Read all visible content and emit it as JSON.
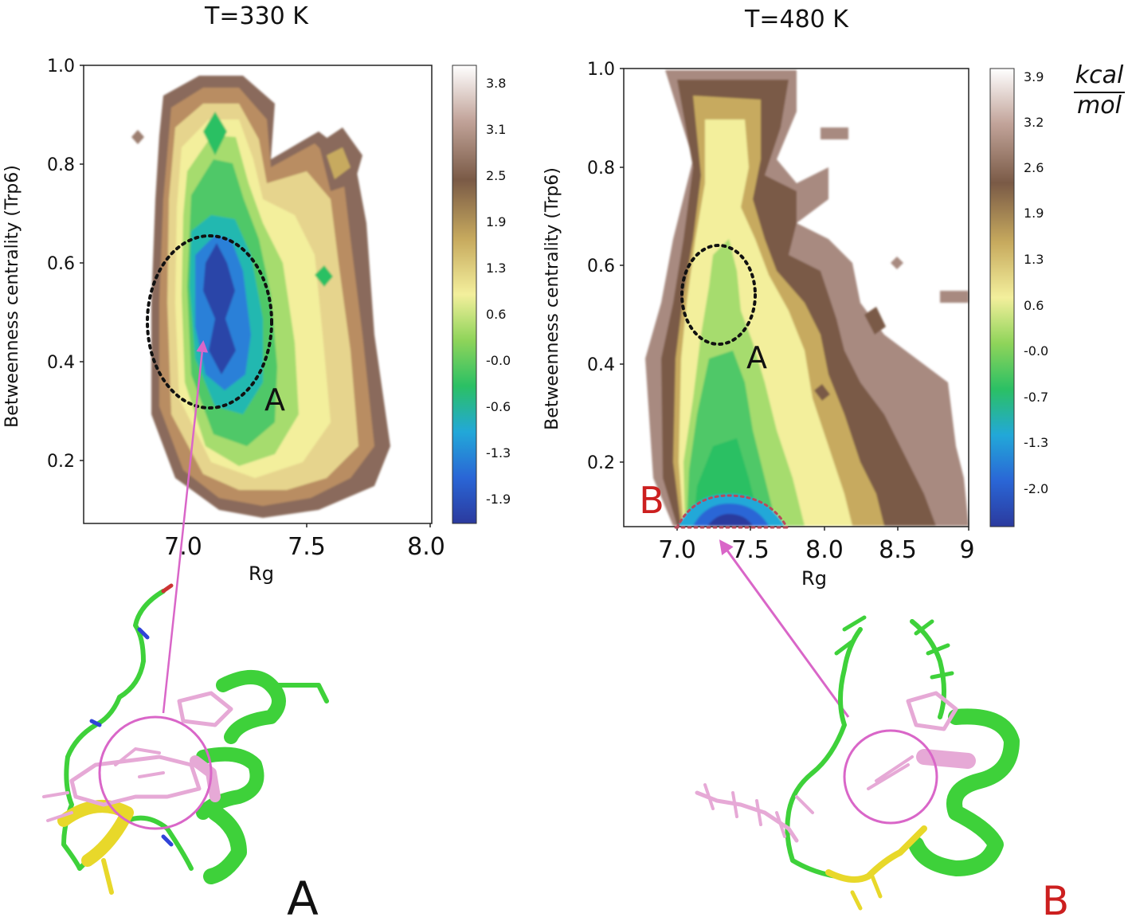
{
  "chart_data": [
    {
      "type": "heatmap",
      "title": "T=330 K",
      "xlabel": "Rg",
      "ylabel": "Betweenness centrality (Trp6)",
      "xlim": [
        6.6,
        8.0
      ],
      "ylim": [
        0.07,
        1.0
      ],
      "x_ticks": [
        7.0,
        7.5,
        8.0
      ],
      "x_tick_labels": [
        "7.0",
        "7.5",
        "8.0"
      ],
      "y_ticks": [
        0.2,
        0.4,
        0.6,
        0.8,
        1.0
      ],
      "y_tick_labels": [
        "0.2",
        "0.4",
        "0.6",
        "0.8",
        "1.0"
      ],
      "colorbar": {
        "ticks": [
          3.8,
          3.1,
          2.5,
          1.9,
          1.3,
          0.6,
          -0.0,
          -0.6,
          -1.3,
          -1.9
        ],
        "tick_labels": [
          "3.8",
          "3.1",
          "2.5",
          "1.9",
          "1.3",
          "0.6",
          "-0.0",
          "-0.6",
          "-1.3",
          "-1.9"
        ],
        "range": [
          -2.3,
          4.1
        ]
      },
      "minima": [
        {
          "x": 7.15,
          "y": 0.57,
          "value": -2.1
        },
        {
          "x": 7.15,
          "y": 0.42,
          "value": -2.0
        },
        {
          "x": 7.15,
          "y": 0.86,
          "value": -0.4
        },
        {
          "x": 7.6,
          "y": 0.58,
          "value": 0.0
        }
      ],
      "annotations": [
        {
          "label": "A",
          "x": 7.35,
          "y": 0.3,
          "circle": {
            "cx": 7.1,
            "cy": 0.48,
            "rx": 0.25,
            "ry": 0.17
          }
        }
      ],
      "structure_label": "A"
    },
    {
      "type": "heatmap",
      "title": "T=480 K",
      "xlabel": "Rg",
      "ylabel": "Betweenness centrality (Trp6)",
      "xlim": [
        6.6,
        9.0
      ],
      "ylim": [
        0.07,
        1.0
      ],
      "x_ticks": [
        7.0,
        7.5,
        8.0,
        8.5,
        9.0
      ],
      "x_tick_labels": [
        "7.0",
        "7.5",
        "8.0",
        "8.5",
        "9"
      ],
      "y_ticks": [
        0.2,
        0.4,
        0.6,
        0.8,
        1.0
      ],
      "y_tick_labels": [
        "0.2",
        "0.4",
        "0.6",
        "0.8",
        "1.0"
      ],
      "colorbar": {
        "ticks": [
          3.9,
          3.2,
          2.6,
          1.9,
          1.3,
          0.6,
          -0.0,
          -0.7,
          -1.3,
          -2.0
        ],
        "tick_labels": [
          "3.9",
          "3.2",
          "2.6",
          "1.9",
          "1.3",
          "0.6",
          "-0.0",
          "-0.7",
          "-1.3",
          "-2.0"
        ],
        "range": [
          -2.5,
          4.2
        ],
        "unit_numerator": "kcal",
        "unit_denominator": "mol"
      },
      "minima": [
        {
          "x": 7.35,
          "y": 0.07,
          "value": -2.4
        },
        {
          "x": 7.35,
          "y": 0.55,
          "value": 0.0
        }
      ],
      "annotations": [
        {
          "label": "A",
          "x": 7.5,
          "y": 0.4,
          "circle": {
            "cx": 7.3,
            "cy": 0.53,
            "rx": 0.25,
            "ry": 0.1
          }
        },
        {
          "label": "B",
          "x": 6.8,
          "y": 0.12
        }
      ],
      "structure_label": "B"
    }
  ],
  "colors": {
    "accent_B": "#cc1f1f",
    "arrow": "#d966c8",
    "protein_green": "#3ed13a",
    "protein_pink": "#e6a9d6",
    "protein_yellow": "#e8d82a"
  }
}
